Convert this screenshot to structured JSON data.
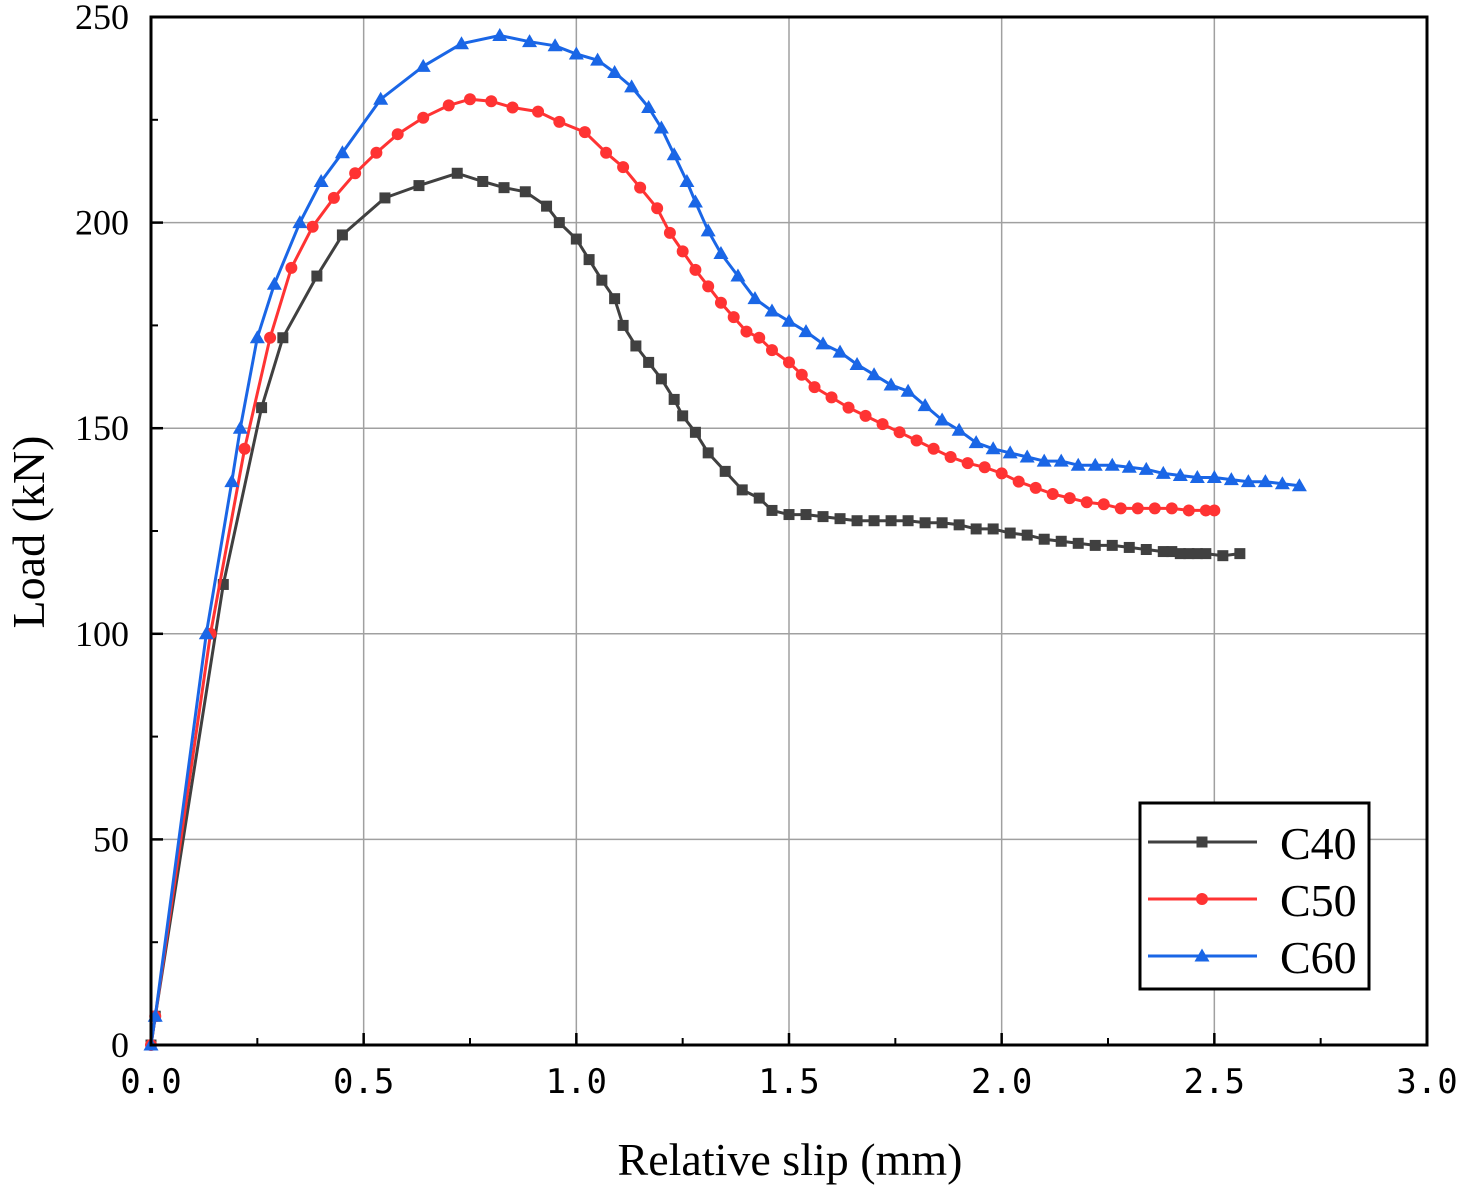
{
  "chart_data": {
    "type": "line",
    "title": "",
    "xlabel": "Relative slip (mm)",
    "ylabel": "Load (kN)",
    "xlim": [
      0,
      3.0
    ],
    "ylim": [
      0,
      250
    ],
    "xticks": [
      0,
      0.5,
      1.0,
      1.5,
      2.0,
      2.5,
      3.0
    ],
    "xtick_labels": [
      "0.0",
      "0.5",
      "1.0",
      "1.5",
      "2.0",
      "2.5",
      "3.0"
    ],
    "yticks": [
      0,
      50,
      100,
      150,
      200,
      250
    ],
    "ytick_labels": [
      "0",
      "50",
      "100",
      "150",
      "200",
      "250"
    ],
    "grid": true,
    "legend_position": "bottom-right",
    "series": [
      {
        "name": "C40",
        "color": "#404040",
        "marker": "square",
        "x": [
          0,
          0.01,
          0.17,
          0.26,
          0.31,
          0.39,
          0.45,
          0.55,
          0.63,
          0.72,
          0.78,
          0.83,
          0.88,
          0.93,
          0.96,
          1.0,
          1.03,
          1.06,
          1.09,
          1.11,
          1.14,
          1.17,
          1.2,
          1.23,
          1.25,
          1.28,
          1.31,
          1.35,
          1.39,
          1.43,
          1.46,
          1.5,
          1.54,
          1.58,
          1.62,
          1.66,
          1.7,
          1.74,
          1.78,
          1.82,
          1.86,
          1.9,
          1.94,
          1.98,
          2.02,
          2.06,
          2.1,
          2.14,
          2.18,
          2.22,
          2.26,
          2.3,
          2.34,
          2.38,
          2.4,
          2.42,
          2.44,
          2.46,
          2.48,
          2.52,
          2.56
        ],
        "y": [
          0,
          7,
          112,
          155,
          172,
          187,
          197,
          206,
          209,
          212,
          210,
          208.5,
          207.5,
          204,
          200,
          196,
          191,
          186,
          181.5,
          175,
          170,
          166,
          162,
          157,
          153,
          149,
          144,
          139.5,
          135,
          133,
          130,
          129,
          129,
          128.5,
          128,
          127.5,
          127.5,
          127.5,
          127.5,
          127,
          127,
          126.5,
          125.5,
          125.5,
          124.5,
          124,
          123,
          122.5,
          122,
          121.5,
          121.5,
          121,
          120.5,
          120,
          120,
          119.5,
          119.5,
          119.5,
          119.5,
          119,
          119.5
        ]
      },
      {
        "name": "C50",
        "color": "#ff3333",
        "marker": "circle",
        "x": [
          0,
          0.01,
          0.14,
          0.22,
          0.28,
          0.33,
          0.38,
          0.43,
          0.48,
          0.53,
          0.58,
          0.64,
          0.7,
          0.75,
          0.8,
          0.85,
          0.91,
          0.96,
          1.02,
          1.07,
          1.11,
          1.15,
          1.19,
          1.22,
          1.25,
          1.28,
          1.31,
          1.34,
          1.37,
          1.4,
          1.43,
          1.46,
          1.5,
          1.53,
          1.56,
          1.6,
          1.64,
          1.68,
          1.72,
          1.76,
          1.8,
          1.84,
          1.88,
          1.92,
          1.96,
          2.0,
          2.04,
          2.08,
          2.12,
          2.16,
          2.2,
          2.24,
          2.28,
          2.32,
          2.36,
          2.4,
          2.44,
          2.48,
          2.5
        ],
        "y": [
          0,
          7,
          100,
          145,
          172,
          189,
          199,
          206,
          212,
          217,
          221.5,
          225.5,
          228.5,
          230,
          229.5,
          228,
          227,
          224.5,
          222,
          217,
          213.5,
          208.5,
          203.5,
          197.5,
          193,
          188.5,
          184.5,
          180.5,
          177,
          173.5,
          172,
          169,
          166,
          163,
          160,
          157.5,
          155,
          153,
          151,
          149,
          147,
          145,
          143,
          141.5,
          140.5,
          139,
          137,
          135.5,
          134,
          133,
          132,
          131.5,
          130.5,
          130.5,
          130.5,
          130.5,
          130,
          130,
          130
        ]
      },
      {
        "name": "C60",
        "color": "#1a66e6",
        "marker": "triangle",
        "x": [
          0,
          0.01,
          0.13,
          0.19,
          0.21,
          0.25,
          0.29,
          0.35,
          0.4,
          0.45,
          0.54,
          0.64,
          0.73,
          0.82,
          0.89,
          0.95,
          1.0,
          1.05,
          1.09,
          1.13,
          1.17,
          1.2,
          1.23,
          1.26,
          1.28,
          1.31,
          1.34,
          1.38,
          1.42,
          1.46,
          1.5,
          1.54,
          1.58,
          1.62,
          1.66,
          1.7,
          1.74,
          1.78,
          1.82,
          1.86,
          1.9,
          1.94,
          1.98,
          2.02,
          2.06,
          2.1,
          2.14,
          2.18,
          2.22,
          2.26,
          2.3,
          2.34,
          2.38,
          2.42,
          2.46,
          2.5,
          2.54,
          2.58,
          2.62,
          2.66,
          2.7
        ],
        "y": [
          0,
          7,
          100,
          137,
          150,
          172,
          185,
          200,
          210,
          217,
          230,
          238,
          243.5,
          245.5,
          244,
          243,
          241,
          239.5,
          236.5,
          233,
          228,
          223,
          216.5,
          210,
          205,
          198,
          192.5,
          187,
          181.5,
          178.5,
          176,
          173.5,
          170.5,
          168.5,
          165.5,
          163,
          160.5,
          159,
          155.5,
          152,
          149.5,
          146.5,
          145,
          144,
          143,
          142,
          142,
          141,
          141,
          141,
          140.5,
          140,
          139,
          138.5,
          138,
          138,
          137.5,
          137,
          137,
          136.5,
          136
        ]
      }
    ]
  }
}
